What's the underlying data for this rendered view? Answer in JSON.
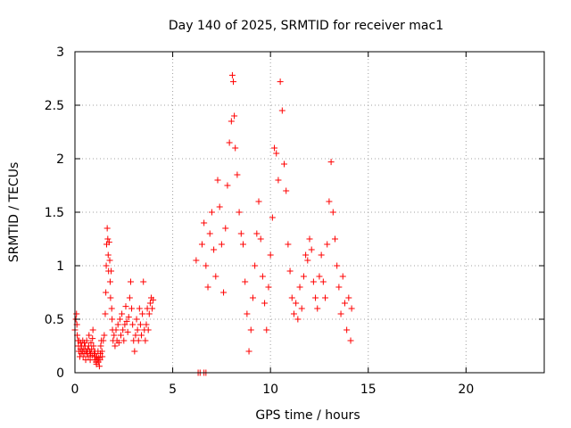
{
  "chart_data": {
    "type": "scatter",
    "title": "Day 140 of 2025, SRMTID for receiver mac1",
    "xlabel": "GPS time / hours",
    "ylabel": "SRMTID / TECUs",
    "xlim": [
      0,
      24
    ],
    "ylim": [
      0,
      3
    ],
    "xticks": [
      0,
      5,
      10,
      15,
      20
    ],
    "yticks": [
      0,
      0.5,
      1,
      1.5,
      2,
      2.5,
      3
    ],
    "xtick_labels": [
      "0",
      "5",
      "10",
      "15",
      "20"
    ],
    "ytick_labels": [
      "0",
      "0.5",
      "1",
      "1.5",
      "2",
      "2.5",
      "3"
    ],
    "grid": true,
    "marker": "plus",
    "color": "#ff0000",
    "series": [
      {
        "name": "mac1",
        "points": [
          [
            0.0,
            0.4
          ],
          [
            0.05,
            0.5
          ],
          [
            0.08,
            0.55
          ],
          [
            0.1,
            0.45
          ],
          [
            0.12,
            0.35
          ],
          [
            0.15,
            0.3
          ],
          [
            0.18,
            0.25
          ],
          [
            0.2,
            0.2
          ],
          [
            0.22,
            0.3
          ],
          [
            0.25,
            0.15
          ],
          [
            0.28,
            0.22
          ],
          [
            0.3,
            0.28
          ],
          [
            0.32,
            0.18
          ],
          [
            0.35,
            0.25
          ],
          [
            0.38,
            0.2
          ],
          [
            0.4,
            0.3
          ],
          [
            0.42,
            0.15
          ],
          [
            0.45,
            0.22
          ],
          [
            0.48,
            0.28
          ],
          [
            0.5,
            0.18
          ],
          [
            0.52,
            0.25
          ],
          [
            0.55,
            0.12
          ],
          [
            0.58,
            0.2
          ],
          [
            0.6,
            0.3
          ],
          [
            0.62,
            0.18
          ],
          [
            0.65,
            0.22
          ],
          [
            0.68,
            0.15
          ],
          [
            0.7,
            0.25
          ],
          [
            0.72,
            0.35
          ],
          [
            0.75,
            0.2
          ],
          [
            0.78,
            0.12
          ],
          [
            0.8,
            0.18
          ],
          [
            0.82,
            0.28
          ],
          [
            0.85,
            0.22
          ],
          [
            0.88,
            0.16
          ],
          [
            0.9,
            0.32
          ],
          [
            0.92,
            0.4
          ],
          [
            0.95,
            0.25
          ],
          [
            0.98,
            0.18
          ],
          [
            1.0,
            0.12
          ],
          [
            1.02,
            0.2
          ],
          [
            1.05,
            0.15
          ],
          [
            1.08,
            0.1
          ],
          [
            1.1,
            0.08
          ],
          [
            1.12,
            0.15
          ],
          [
            1.15,
            0.12
          ],
          [
            1.18,
            0.2
          ],
          [
            1.2,
            0.1
          ],
          [
            1.22,
            0.14
          ],
          [
            1.25,
            0.06
          ],
          [
            1.28,
            0.12
          ],
          [
            1.3,
            0.18
          ],
          [
            1.32,
            0.25
          ],
          [
            1.35,
            0.3
          ],
          [
            1.38,
            0.2
          ],
          [
            1.4,
            0.15
          ],
          [
            1.45,
            0.3
          ],
          [
            1.5,
            0.35
          ],
          [
            1.55,
            0.55
          ],
          [
            1.58,
            0.75
          ],
          [
            1.6,
            1.0
          ],
          [
            1.62,
            1.2
          ],
          [
            1.65,
            1.35
          ],
          [
            1.68,
            1.25
          ],
          [
            1.7,
            1.1
          ],
          [
            1.72,
            0.95
          ],
          [
            1.75,
            1.22
          ],
          [
            1.78,
            1.05
          ],
          [
            1.8,
            0.85
          ],
          [
            1.82,
            0.7
          ],
          [
            1.85,
            0.95
          ],
          [
            1.88,
            0.6
          ],
          [
            1.9,
            0.5
          ],
          [
            1.92,
            0.4
          ],
          [
            1.95,
            0.3
          ],
          [
            2.0,
            0.35
          ],
          [
            2.05,
            0.25
          ],
          [
            2.1,
            0.4
          ],
          [
            2.15,
            0.3
          ],
          [
            2.2,
            0.45
          ],
          [
            2.25,
            0.28
          ],
          [
            2.3,
            0.5
          ],
          [
            2.35,
            0.35
          ],
          [
            2.4,
            0.55
          ],
          [
            2.45,
            0.4
          ],
          [
            2.5,
            0.3
          ],
          [
            2.55,
            0.45
          ],
          [
            2.6,
            0.62
          ],
          [
            2.65,
            0.48
          ],
          [
            2.7,
            0.38
          ],
          [
            2.75,
            0.52
          ],
          [
            2.8,
            0.7
          ],
          [
            2.85,
            0.85
          ],
          [
            2.9,
            0.6
          ],
          [
            2.95,
            0.45
          ],
          [
            3.0,
            0.3
          ],
          [
            3.05,
            0.2
          ],
          [
            3.1,
            0.35
          ],
          [
            3.15,
            0.5
          ],
          [
            3.2,
            0.4
          ],
          [
            3.25,
            0.3
          ],
          [
            3.3,
            0.6
          ],
          [
            3.35,
            0.45
          ],
          [
            3.4,
            0.35
          ],
          [
            3.45,
            0.55
          ],
          [
            3.5,
            0.85
          ],
          [
            3.55,
            0.4
          ],
          [
            3.6,
            0.3
          ],
          [
            3.65,
            0.45
          ],
          [
            3.7,
            0.6
          ],
          [
            3.75,
            0.4
          ],
          [
            3.8,
            0.55
          ],
          [
            3.85,
            0.65
          ],
          [
            3.9,
            0.7
          ],
          [
            3.95,
            0.6
          ],
          [
            4.0,
            0.68
          ],
          [
            6.3,
            0.0
          ],
          [
            6.4,
            0.0
          ],
          [
            6.6,
            0.0
          ],
          [
            6.7,
            0.0
          ],
          [
            6.2,
            1.05
          ],
          [
            6.5,
            1.2
          ],
          [
            6.6,
            1.4
          ],
          [
            6.7,
            1.0
          ],
          [
            6.8,
            0.8
          ],
          [
            6.9,
            1.3
          ],
          [
            7.0,
            1.5
          ],
          [
            7.1,
            1.15
          ],
          [
            7.2,
            0.9
          ],
          [
            7.3,
            1.8
          ],
          [
            7.4,
            1.55
          ],
          [
            7.5,
            1.2
          ],
          [
            7.6,
            0.75
          ],
          [
            7.7,
            1.35
          ],
          [
            7.8,
            1.75
          ],
          [
            7.9,
            2.15
          ],
          [
            8.0,
            2.35
          ],
          [
            8.05,
            2.78
          ],
          [
            8.1,
            2.72
          ],
          [
            8.15,
            2.4
          ],
          [
            8.2,
            2.1
          ],
          [
            8.3,
            1.85
          ],
          [
            8.4,
            1.5
          ],
          [
            8.5,
            1.3
          ],
          [
            8.6,
            1.2
          ],
          [
            8.7,
            0.85
          ],
          [
            8.8,
            0.55
          ],
          [
            8.9,
            0.2
          ],
          [
            9.0,
            0.4
          ],
          [
            9.1,
            0.7
          ],
          [
            9.2,
            1.0
          ],
          [
            9.3,
            1.3
          ],
          [
            9.4,
            1.6
          ],
          [
            9.5,
            1.25
          ],
          [
            9.6,
            0.9
          ],
          [
            9.7,
            0.65
          ],
          [
            9.8,
            0.4
          ],
          [
            9.9,
            0.8
          ],
          [
            10.0,
            1.1
          ],
          [
            10.1,
            1.45
          ],
          [
            10.2,
            2.1
          ],
          [
            10.3,
            2.05
          ],
          [
            10.4,
            1.8
          ],
          [
            10.5,
            2.72
          ],
          [
            10.6,
            2.45
          ],
          [
            10.7,
            1.95
          ],
          [
            10.8,
            1.7
          ],
          [
            10.9,
            1.2
          ],
          [
            11.0,
            0.95
          ],
          [
            11.1,
            0.7
          ],
          [
            11.2,
            0.55
          ],
          [
            11.3,
            0.65
          ],
          [
            11.4,
            0.5
          ],
          [
            11.5,
            0.8
          ],
          [
            11.6,
            0.6
          ],
          [
            11.7,
            0.9
          ],
          [
            11.8,
            1.1
          ],
          [
            11.9,
            1.05
          ],
          [
            12.0,
            1.25
          ],
          [
            12.1,
            1.15
          ],
          [
            12.2,
            0.85
          ],
          [
            12.3,
            0.7
          ],
          [
            12.4,
            0.6
          ],
          [
            12.5,
            0.9
          ],
          [
            12.6,
            1.1
          ],
          [
            12.7,
            0.85
          ],
          [
            12.8,
            0.7
          ],
          [
            12.9,
            1.2
          ],
          [
            13.0,
            1.6
          ],
          [
            13.1,
            1.97
          ],
          [
            13.2,
            1.5
          ],
          [
            13.3,
            1.25
          ],
          [
            13.4,
            1.0
          ],
          [
            13.5,
            0.8
          ],
          [
            13.6,
            0.55
          ],
          [
            13.7,
            0.9
          ],
          [
            13.8,
            0.65
          ],
          [
            13.9,
            0.4
          ],
          [
            14.0,
            0.7
          ],
          [
            14.1,
            0.3
          ],
          [
            14.15,
            0.6
          ]
        ]
      }
    ]
  }
}
